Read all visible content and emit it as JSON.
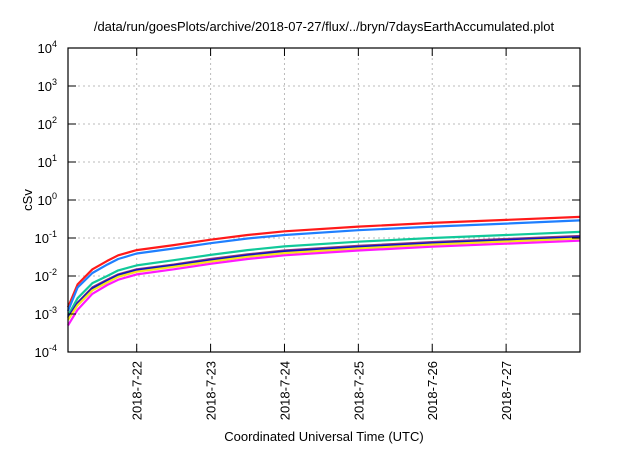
{
  "chart_data": {
    "type": "line",
    "title": "/data/run/goesPlots/archive/2018-07-27/flux/../bryn/7daysEarthAccumulated.plot",
    "xlabel": "Coordinated Universal Time (UTC)",
    "ylabel": "cSv",
    "yscale": "log",
    "ylim": [
      0.0001,
      10000
    ],
    "xlim_days_since_2018-07-21": [
      0.07,
      7.0
    ],
    "grid": true,
    "y_ticks": [
      {
        "value": 0.0001,
        "base": "10",
        "exp": "-4"
      },
      {
        "value": 0.001,
        "base": "10",
        "exp": "-3"
      },
      {
        "value": 0.01,
        "base": "10",
        "exp": "-2"
      },
      {
        "value": 0.1,
        "base": "10",
        "exp": "-1"
      },
      {
        "value": 1,
        "base": "10",
        "exp": "0"
      },
      {
        "value": 10,
        "base": "10",
        "exp": "1"
      },
      {
        "value": 100,
        "base": "10",
        "exp": "2"
      },
      {
        "value": 1000,
        "base": "10",
        "exp": "3"
      },
      {
        "value": 10000,
        "base": "10",
        "exp": "4"
      }
    ],
    "x_ticks": [
      {
        "value": 1,
        "label": "2018-7-22"
      },
      {
        "value": 2,
        "label": "2018-7-23"
      },
      {
        "value": 3,
        "label": "2018-7-24"
      },
      {
        "value": 4,
        "label": "2018-7-25"
      },
      {
        "value": 5,
        "label": "2018-7-26"
      },
      {
        "value": 6,
        "label": "2018-7-27"
      }
    ],
    "x": [
      0.07,
      0.2,
      0.4,
      0.6,
      0.75,
      1.0,
      1.5,
      2.0,
      2.5,
      3.0,
      4.0,
      5.0,
      6.0,
      7.0
    ],
    "series": [
      {
        "name": "red",
        "color": "#ff1a1a",
        "values": [
          0.0015,
          0.006,
          0.015,
          0.025,
          0.035,
          0.048,
          0.065,
          0.09,
          0.12,
          0.15,
          0.2,
          0.25,
          0.3,
          0.36
        ]
      },
      {
        "name": "blue",
        "color": "#1f7fff",
        "values": [
          0.0012,
          0.005,
          0.012,
          0.02,
          0.028,
          0.039,
          0.053,
          0.073,
          0.097,
          0.12,
          0.16,
          0.2,
          0.24,
          0.29
        ]
      },
      {
        "name": "green",
        "color": "#11c99a",
        "values": [
          0.0009,
          0.0026,
          0.0065,
          0.01,
          0.014,
          0.019,
          0.026,
          0.036,
          0.048,
          0.06,
          0.08,
          0.1,
          0.12,
          0.145
        ]
      },
      {
        "name": "purple",
        "color": "#8b3a7a",
        "values": [
          0.0008,
          0.002,
          0.005,
          0.008,
          0.011,
          0.015,
          0.02,
          0.028,
          0.037,
          0.047,
          0.062,
          0.078,
          0.094,
          0.113
        ]
      },
      {
        "name": "darkblue",
        "color": "#1010c8",
        "values": [
          0.0008,
          0.0019,
          0.0047,
          0.0075,
          0.0105,
          0.0142,
          0.019,
          0.026,
          0.035,
          0.044,
          0.058,
          0.073,
          0.088,
          0.105
        ]
      },
      {
        "name": "yellow",
        "color": "#f5e61a",
        "values": [
          0.0007,
          0.0017,
          0.0042,
          0.0068,
          0.0095,
          0.013,
          0.0175,
          0.024,
          0.032,
          0.04,
          0.053,
          0.067,
          0.081,
          0.097
        ]
      },
      {
        "name": "magenta",
        "color": "#ff1aff",
        "values": [
          0.0005,
          0.0013,
          0.0034,
          0.0058,
          0.008,
          0.011,
          0.015,
          0.021,
          0.028,
          0.035,
          0.047,
          0.059,
          0.071,
          0.085
        ]
      }
    ]
  }
}
